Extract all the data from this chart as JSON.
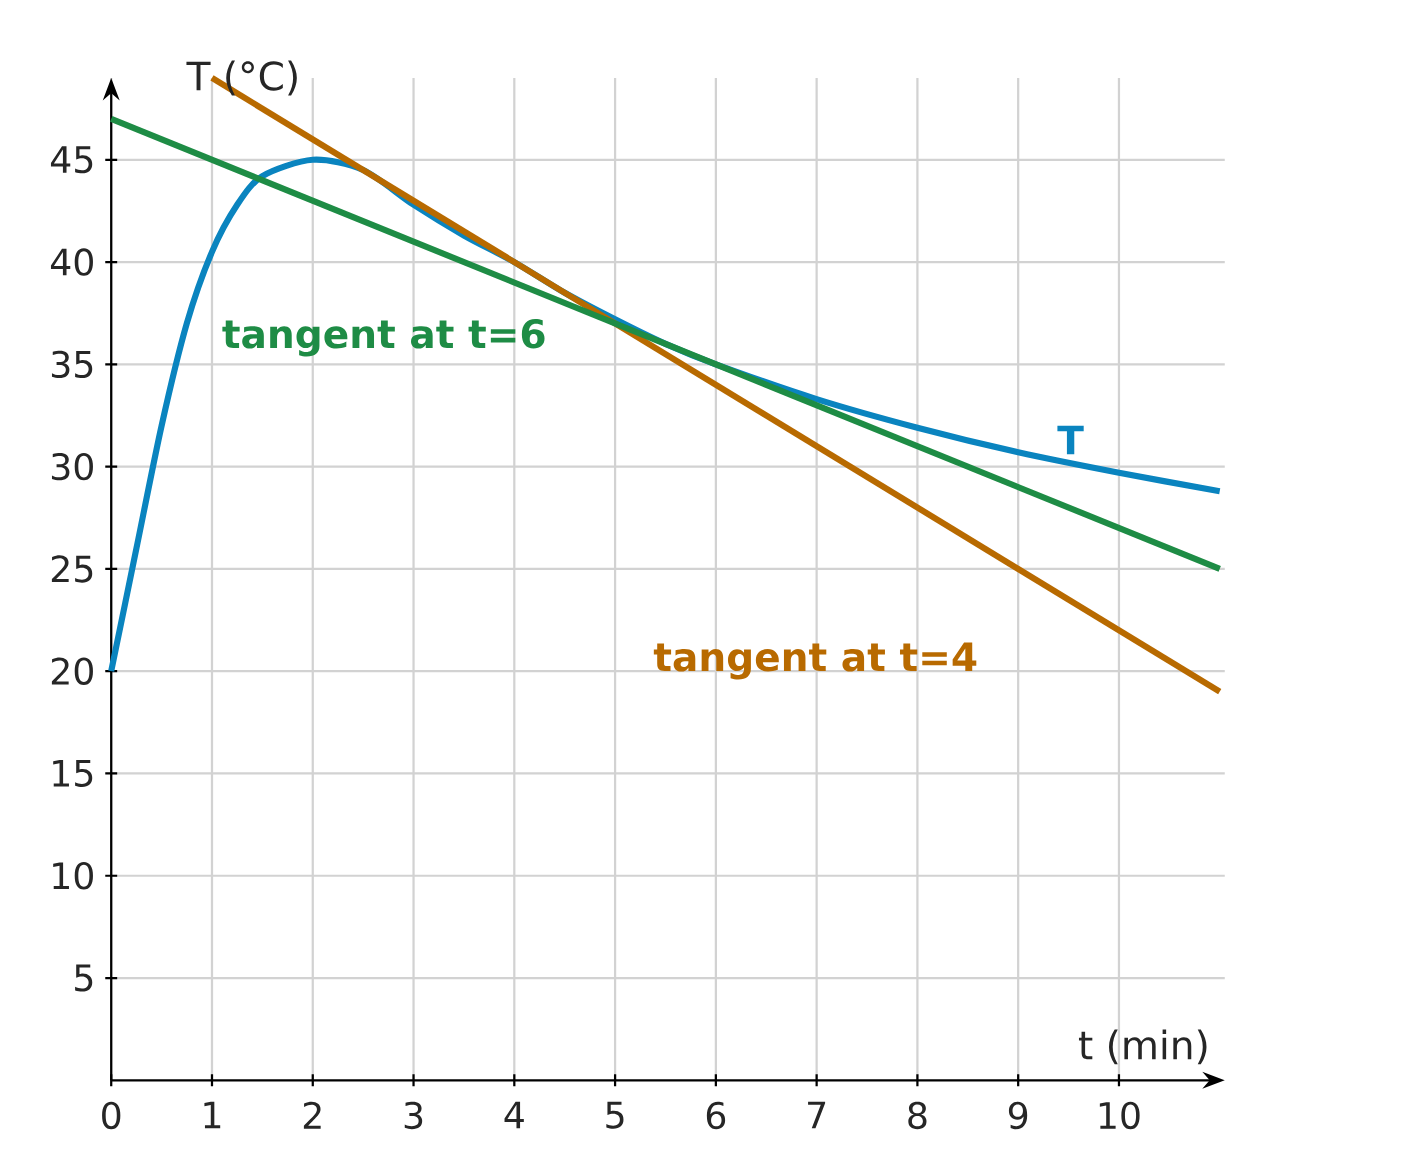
{
  "chart_data": {
    "type": "line",
    "xlabel": "t (min)",
    "ylabel": "T (°C)",
    "xlim": [
      0,
      11
    ],
    "ylim": [
      0,
      49
    ],
    "xticks": [
      0,
      1,
      2,
      3,
      4,
      5,
      6,
      7,
      8,
      9,
      10
    ],
    "yticks": [
      5,
      10,
      15,
      20,
      25,
      30,
      35,
      40,
      45
    ],
    "grid": true,
    "legend": false,
    "marker": "none",
    "series": [
      {
        "name": "T",
        "color": "#0a84bf",
        "x": [
          0,
          0.25,
          0.5,
          0.75,
          1,
          1.25,
          1.5,
          2,
          2.5,
          3,
          3.5,
          4,
          4.5,
          5,
          5.5,
          6,
          7,
          8,
          9,
          10,
          11
        ],
        "values": [
          20,
          26,
          32,
          37,
          40.5,
          42.8,
          44.2,
          45,
          44.5,
          42.8,
          41.3,
          40,
          38.5,
          37.2,
          36,
          35,
          33.3,
          31.9,
          30.7,
          29.7,
          28.8
        ]
      },
      {
        "name": "tangent at t=4",
        "color": "#b86a00",
        "x": [
          1,
          11
        ],
        "values": [
          49,
          19
        ]
      },
      {
        "name": "tangent at t=6",
        "color": "#1e8c45",
        "x": [
          0,
          11
        ],
        "values": [
          47,
          25
        ]
      }
    ]
  }
}
